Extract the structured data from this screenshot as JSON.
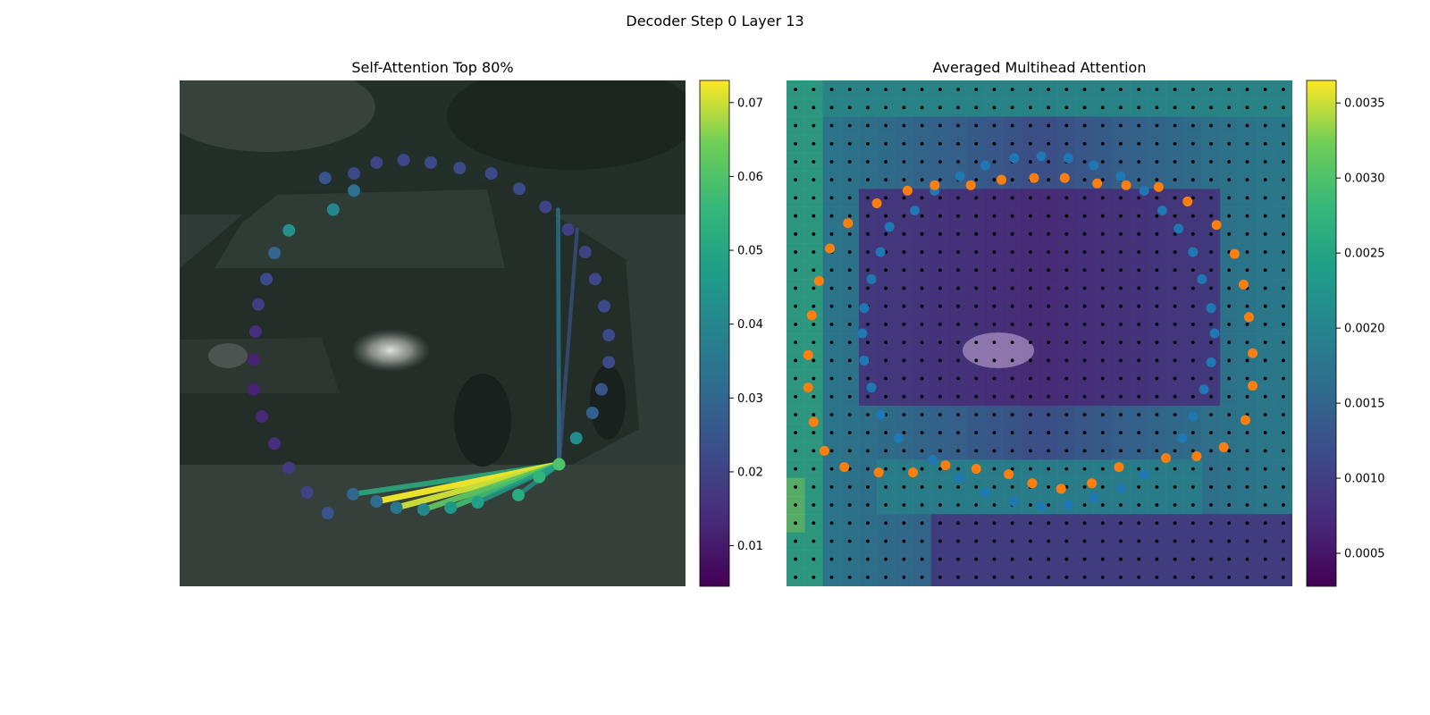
{
  "figure": {
    "suptitle": "Decoder Step 0 Layer 13"
  },
  "chart_data": [
    {
      "type": "scatter",
      "title": "Self-Attention Top 80%",
      "xlim": [
        0,
        56
      ],
      "ylim": [
        56,
        0
      ],
      "grid": false,
      "points": [
        {
          "x": 19.3,
          "y": 12.2,
          "v": 0.033
        },
        {
          "x": 17.0,
          "y": 14.3,
          "v": 0.04
        },
        {
          "x": 12.1,
          "y": 16.6,
          "v": 0.043
        },
        {
          "x": 10.5,
          "y": 19.1,
          "v": 0.03
        },
        {
          "x": 9.6,
          "y": 22.0,
          "v": 0.022
        },
        {
          "x": 8.7,
          "y": 24.8,
          "v": 0.019
        },
        {
          "x": 8.4,
          "y": 27.8,
          "v": 0.015
        },
        {
          "x": 8.2,
          "y": 30.9,
          "v": 0.012
        },
        {
          "x": 8.2,
          "y": 34.2,
          "v": 0.012
        },
        {
          "x": 9.1,
          "y": 37.2,
          "v": 0.013
        },
        {
          "x": 10.5,
          "y": 40.2,
          "v": 0.015
        },
        {
          "x": 12.1,
          "y": 42.9,
          "v": 0.018
        },
        {
          "x": 14.1,
          "y": 45.6,
          "v": 0.02
        },
        {
          "x": 16.4,
          "y": 47.9,
          "v": 0.025
        },
        {
          "x": 19.2,
          "y": 45.8,
          "v": 0.03
        },
        {
          "x": 21.8,
          "y": 46.6,
          "v": 0.032
        },
        {
          "x": 24.0,
          "y": 47.3,
          "v": 0.035
        },
        {
          "x": 27.0,
          "y": 47.5,
          "v": 0.04
        },
        {
          "x": 30.0,
          "y": 47.3,
          "v": 0.045
        },
        {
          "x": 33.0,
          "y": 46.7,
          "v": 0.048
        },
        {
          "x": 37.5,
          "y": 45.9,
          "v": 0.052
        },
        {
          "x": 39.8,
          "y": 43.9,
          "v": 0.055
        },
        {
          "x": 42.0,
          "y": 42.5,
          "v": 0.06
        },
        {
          "x": 43.9,
          "y": 39.6,
          "v": 0.042
        },
        {
          "x": 45.7,
          "y": 36.8,
          "v": 0.028
        },
        {
          "x": 46.7,
          "y": 34.2,
          "v": 0.024
        },
        {
          "x": 47.5,
          "y": 31.2,
          "v": 0.022
        },
        {
          "x": 47.5,
          "y": 28.2,
          "v": 0.022
        },
        {
          "x": 47.0,
          "y": 25.0,
          "v": 0.022
        },
        {
          "x": 46.0,
          "y": 22.0,
          "v": 0.021
        },
        {
          "x": 44.9,
          "y": 19.0,
          "v": 0.02
        },
        {
          "x": 43.0,
          "y": 16.5,
          "v": 0.019
        },
        {
          "x": 40.5,
          "y": 14.0,
          "v": 0.02
        },
        {
          "x": 37.6,
          "y": 12.0,
          "v": 0.022
        },
        {
          "x": 34.5,
          "y": 10.3,
          "v": 0.022
        },
        {
          "x": 31.0,
          "y": 9.7,
          "v": 0.022
        },
        {
          "x": 27.8,
          "y": 9.1,
          "v": 0.022
        },
        {
          "x": 24.8,
          "y": 8.8,
          "v": 0.021
        },
        {
          "x": 21.8,
          "y": 9.1,
          "v": 0.02
        },
        {
          "x": 19.3,
          "y": 10.3,
          "v": 0.022
        },
        {
          "x": 16.1,
          "y": 10.8,
          "v": 0.025
        }
      ],
      "query_point": {
        "x": 42.0,
        "y": 42.5
      },
      "attention_edges": [
        {
          "x": 19.2,
          "y": 45.8,
          "v": 0.052
        },
        {
          "x": 21.8,
          "y": 46.6,
          "v": 0.072
        },
        {
          "x": 24.0,
          "y": 47.3,
          "v": 0.07
        },
        {
          "x": 27.0,
          "y": 47.5,
          "v": 0.062
        },
        {
          "x": 30.0,
          "y": 47.3,
          "v": 0.058
        },
        {
          "x": 33.0,
          "y": 46.7,
          "v": 0.046
        },
        {
          "x": 37.5,
          "y": 45.9,
          "v": 0.043
        },
        {
          "x": 39.8,
          "y": 43.9,
          "v": 0.048
        },
        {
          "x": 41.9,
          "y": 14.3,
          "v": 0.035
        },
        {
          "x": 44.0,
          "y": 16.5,
          "v": 0.025
        }
      ],
      "colorbar": {
        "cmap": "viridis",
        "vmin": 0.0045,
        "vmax": 0.073,
        "ticks": [
          0.01,
          0.02,
          0.03,
          0.04,
          0.05,
          0.06,
          0.07
        ]
      }
    },
    {
      "type": "heatmap",
      "title": "Averaged Multihead Attention",
      "xlim": [
        0,
        28
      ],
      "ylim": [
        28,
        0
      ],
      "grid_rows": 28,
      "grid_cols": 28,
      "colorbar": {
        "cmap": "viridis",
        "vmin": 0.00028,
        "vmax": 0.00365,
        "ticks": [
          0.0005,
          0.001,
          0.0015,
          0.002,
          0.0025,
          0.003,
          0.0035
        ]
      },
      "series": [
        {
          "color": "#1f77b4",
          "points": [
            {
              "x": 9.6,
              "y": 5.3
            },
            {
              "x": 11.0,
              "y": 4.7
            },
            {
              "x": 12.6,
              "y": 4.3
            },
            {
              "x": 14.1,
              "y": 4.2
            },
            {
              "x": 15.6,
              "y": 4.3
            },
            {
              "x": 17.0,
              "y": 4.7
            },
            {
              "x": 18.5,
              "y": 5.3
            },
            {
              "x": 19.8,
              "y": 6.1
            },
            {
              "x": 20.8,
              "y": 7.2
            },
            {
              "x": 21.7,
              "y": 8.2
            },
            {
              "x": 22.5,
              "y": 9.5
            },
            {
              "x": 23.0,
              "y": 11.0
            },
            {
              "x": 23.5,
              "y": 12.6
            },
            {
              "x": 23.7,
              "y": 14.0
            },
            {
              "x": 23.5,
              "y": 15.6
            },
            {
              "x": 23.1,
              "y": 17.1
            },
            {
              "x": 22.5,
              "y": 18.6
            },
            {
              "x": 21.9,
              "y": 19.8
            },
            {
              "x": 21.0,
              "y": 20.9
            },
            {
              "x": 19.8,
              "y": 21.8
            },
            {
              "x": 18.5,
              "y": 22.6
            },
            {
              "x": 17.0,
              "y": 23.1
            },
            {
              "x": 15.6,
              "y": 23.5
            },
            {
              "x": 14.1,
              "y": 23.6
            },
            {
              "x": 12.6,
              "y": 23.3
            },
            {
              "x": 11.0,
              "y": 22.8
            },
            {
              "x": 9.6,
              "y": 22.0
            },
            {
              "x": 8.1,
              "y": 21.0
            },
            {
              "x": 6.2,
              "y": 19.8
            },
            {
              "x": 5.2,
              "y": 18.5
            },
            {
              "x": 4.7,
              "y": 17.0
            },
            {
              "x": 4.3,
              "y": 15.5
            },
            {
              "x": 4.2,
              "y": 14.0
            },
            {
              "x": 4.3,
              "y": 12.6
            },
            {
              "x": 4.7,
              "y": 11.0
            },
            {
              "x": 5.2,
              "y": 9.5
            },
            {
              "x": 5.7,
              "y": 8.1
            },
            {
              "x": 7.1,
              "y": 7.2
            },
            {
              "x": 8.2,
              "y": 6.1
            }
          ]
        },
        {
          "color": "#ff7f0e",
          "points": [
            {
              "x": 5.0,
              "y": 6.8
            },
            {
              "x": 6.7,
              "y": 6.1
            },
            {
              "x": 8.2,
              "y": 5.8
            },
            {
              "x": 10.2,
              "y": 5.8
            },
            {
              "x": 11.9,
              "y": 5.5
            },
            {
              "x": 13.7,
              "y": 5.4
            },
            {
              "x": 15.4,
              "y": 5.4
            },
            {
              "x": 17.2,
              "y": 5.7
            },
            {
              "x": 18.8,
              "y": 5.8
            },
            {
              "x": 20.6,
              "y": 5.9
            },
            {
              "x": 22.2,
              "y": 6.7
            },
            {
              "x": 23.8,
              "y": 8.0
            },
            {
              "x": 24.8,
              "y": 9.6
            },
            {
              "x": 25.3,
              "y": 11.3
            },
            {
              "x": 25.6,
              "y": 13.1
            },
            {
              "x": 25.8,
              "y": 15.1
            },
            {
              "x": 25.8,
              "y": 16.9
            },
            {
              "x": 25.4,
              "y": 18.8
            },
            {
              "x": 24.2,
              "y": 20.3
            },
            {
              "x": 22.7,
              "y": 20.8
            },
            {
              "x": 21.0,
              "y": 20.9
            },
            {
              "x": 18.4,
              "y": 21.4
            },
            {
              "x": 16.9,
              "y": 22.3
            },
            {
              "x": 15.2,
              "y": 22.6
            },
            {
              "x": 13.6,
              "y": 22.3
            },
            {
              "x": 12.3,
              "y": 21.8
            },
            {
              "x": 10.5,
              "y": 21.5
            },
            {
              "x": 8.8,
              "y": 21.3
            },
            {
              "x": 7.0,
              "y": 21.7
            },
            {
              "x": 5.1,
              "y": 21.7
            },
            {
              "x": 3.2,
              "y": 21.4
            },
            {
              "x": 2.1,
              "y": 20.5
            },
            {
              "x": 1.5,
              "y": 18.9
            },
            {
              "x": 1.2,
              "y": 17.0
            },
            {
              "x": 1.2,
              "y": 15.2
            },
            {
              "x": 1.4,
              "y": 13.0
            },
            {
              "x": 1.8,
              "y": 11.1
            },
            {
              "x": 2.4,
              "y": 9.3
            },
            {
              "x": 3.4,
              "y": 7.9
            }
          ]
        }
      ]
    }
  ]
}
